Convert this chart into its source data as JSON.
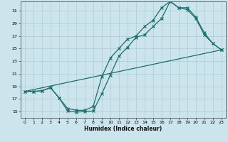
{
  "xlabel": "Humidex (Indice chaleur)",
  "xlim": [
    -0.5,
    23.5
  ],
  "ylim": [
    14.0,
    32.5
  ],
  "xticks": [
    0,
    1,
    2,
    3,
    4,
    5,
    6,
    7,
    8,
    9,
    10,
    11,
    12,
    13,
    14,
    15,
    16,
    17,
    18,
    19,
    20,
    21,
    22,
    23
  ],
  "yticks": [
    15,
    17,
    19,
    21,
    23,
    25,
    27,
    29,
    31
  ],
  "bg_color": "#cce4ec",
  "line_color": "#1a6e6a",
  "grid_color": "#aaccd8",
  "line1_x": [
    0,
    1,
    2,
    3,
    4,
    5,
    6,
    7,
    8,
    9,
    10,
    11,
    12,
    13,
    14,
    15,
    16,
    17,
    18,
    19,
    20,
    21,
    22,
    23
  ],
  "line1_y": [
    18.2,
    18.2,
    18.3,
    18.8,
    17.2,
    15.1,
    14.9,
    15.0,
    15.1,
    17.8,
    20.8,
    23.8,
    25.2,
    26.8,
    27.2,
    28.5,
    29.8,
    32.5,
    31.5,
    31.2,
    29.8,
    27.2,
    25.8,
    24.8
  ],
  "line2_x": [
    0,
    1,
    2,
    3,
    4,
    5,
    6,
    7,
    8,
    9,
    10,
    11,
    12,
    13,
    14,
    15,
    16,
    17,
    18,
    19,
    20,
    21,
    22,
    23
  ],
  "line2_y": [
    18.2,
    18.2,
    18.3,
    18.8,
    17.2,
    15.5,
    15.2,
    15.2,
    15.8,
    20.5,
    23.5,
    25.0,
    26.5,
    27.0,
    28.5,
    29.5,
    31.5,
    32.5,
    31.5,
    31.5,
    30.0,
    27.5,
    25.8,
    24.8
  ],
  "line3_x": [
    0,
    23
  ],
  "line3_y": [
    18.2,
    24.8
  ]
}
